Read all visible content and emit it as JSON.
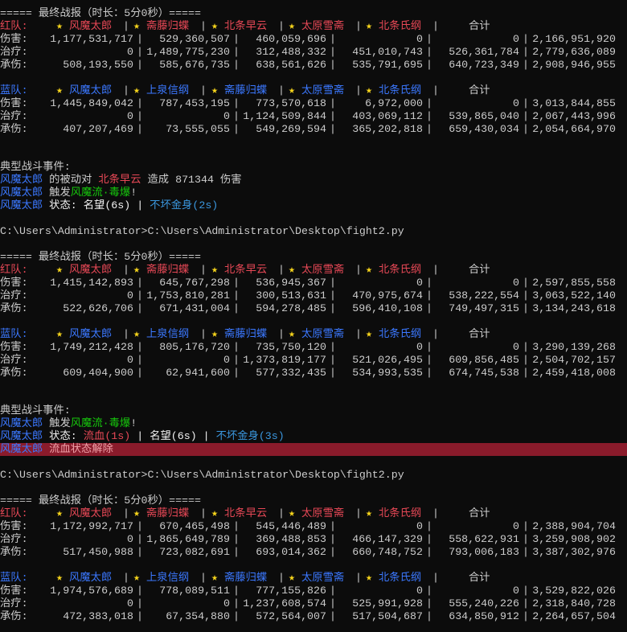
{
  "separator": "|",
  "star": "★",
  "star_color": "#f9d71c",
  "text_color": "#cccccc",
  "blocks": [
    {
      "banner": "===== 最终战报（时长：5分0秒）=====",
      "teams": [
        {
          "label": "红队:",
          "color": "#e74856",
          "members": [
            "风魔太郎",
            "斋藤归蝶",
            "北条早云",
            "太原雪斋",
            "北条氏纲"
          ],
          "total_label": "合计",
          "rows": [
            {
              "label": "伤害:",
              "values": [
                "1,177,531,717",
                "529,360,507",
                "460,059,696",
                "0",
                "0",
                "2,166,951,920"
              ]
            },
            {
              "label": "治疗:",
              "values": [
                "0",
                "1,489,775,230",
                "312,488,332",
                "451,010,743",
                "526,361,784",
                "2,779,636,089"
              ]
            },
            {
              "label": "承伤:",
              "values": [
                "508,193,550",
                "585,676,735",
                "638,561,626",
                "535,791,695",
                "640,723,349",
                "2,908,946,955"
              ]
            }
          ]
        },
        {
          "label": "蓝队:",
          "color": "#3b78ff",
          "members": [
            "风魔太郎",
            "上泉信纲",
            "斋藤归蝶",
            "太原雪斋",
            "北条氏纲"
          ],
          "total_label": "合计",
          "rows": [
            {
              "label": "伤害:",
              "values": [
                "1,445,849,042",
                "787,453,195",
                "773,570,618",
                "6,972,000",
                "0",
                "3,013,844,855"
              ]
            },
            {
              "label": "治疗:",
              "values": [
                "0",
                "0",
                "1,124,509,844",
                "403,069,112",
                "539,865,040",
                "2,067,443,996"
              ]
            },
            {
              "label": "承伤:",
              "values": [
                "407,207,469",
                "73,555,055",
                "549,269,594",
                "365,202,818",
                "659,430,034",
                "2,054,664,970"
              ]
            }
          ]
        }
      ],
      "events_title": "典型战斗事件:",
      "events": [
        {
          "segments": [
            {
              "text": "风魔太郎",
              "color": "#3b78ff"
            },
            {
              "text": " 的被动对 ",
              "color": "#cccccc"
            },
            {
              "text": "北条早云",
              "color": "#e74856"
            },
            {
              "text": " 造成 871344 伤害",
              "color": "#cccccc"
            }
          ]
        },
        {
          "segments": [
            {
              "text": "风魔太郎",
              "color": "#3b78ff"
            },
            {
              "text": " 触发",
              "color": "#cccccc"
            },
            {
              "text": "风魔流·毒爆",
              "color": "#16c60c"
            },
            {
              "text": "!",
              "color": "#cccccc"
            }
          ]
        },
        {
          "segments": [
            {
              "text": "风魔太郎",
              "color": "#3b78ff"
            },
            {
              "text": " 状态: 名望(6s) | ",
              "color": "#f2f2f2"
            },
            {
              "text": "不坏金身(2s)",
              "color": "#3a96dd"
            }
          ]
        }
      ],
      "prompt": "C:\\Users\\Administrator>C:\\Users\\Administrator\\Desktop\\fight2.py"
    },
    {
      "banner": "===== 最终战报（时长：5分0秒）=====",
      "teams": [
        {
          "label": "红队:",
          "color": "#e74856",
          "members": [
            "风魔太郎",
            "斋藤归蝶",
            "北条早云",
            "太原雪斋",
            "北条氏纲"
          ],
          "total_label": "合计",
          "rows": [
            {
              "label": "伤害:",
              "values": [
                "1,415,142,893",
                "645,767,298",
                "536,945,367",
                "0",
                "0",
                "2,597,855,558"
              ]
            },
            {
              "label": "治疗:",
              "values": [
                "0",
                "1,753,810,281",
                "300,513,631",
                "470,975,674",
                "538,222,554",
                "3,063,522,140"
              ]
            },
            {
              "label": "承伤:",
              "values": [
                "522,626,706",
                "671,431,004",
                "594,278,485",
                "596,410,108",
                "749,497,315",
                "3,134,243,618"
              ]
            }
          ]
        },
        {
          "label": "蓝队:",
          "color": "#3b78ff",
          "members": [
            "风魔太郎",
            "上泉信纲",
            "斋藤归蝶",
            "太原雪斋",
            "北条氏纲"
          ],
          "total_label": "合计",
          "rows": [
            {
              "label": "伤害:",
              "values": [
                "1,749,212,428",
                "805,176,720",
                "735,750,120",
                "0",
                "0",
                "3,290,139,268"
              ]
            },
            {
              "label": "治疗:",
              "values": [
                "0",
                "0",
                "1,373,819,177",
                "521,026,495",
                "609,856,485",
                "2,504,702,157"
              ]
            },
            {
              "label": "承伤:",
              "values": [
                "609,404,900",
                "62,941,600",
                "577,332,435",
                "534,993,535",
                "674,745,538",
                "2,459,418,008"
              ]
            }
          ]
        }
      ],
      "events_title": "典型战斗事件:",
      "events": [
        {
          "segments": [
            {
              "text": "风魔太郎",
              "color": "#3b78ff"
            },
            {
              "text": " 触发",
              "color": "#cccccc"
            },
            {
              "text": "风魔流·毒爆",
              "color": "#16c60c"
            },
            {
              "text": "!",
              "color": "#cccccc"
            }
          ]
        },
        {
          "segments": [
            {
              "text": "风魔太郎",
              "color": "#3b78ff"
            },
            {
              "text": " 状态: ",
              "color": "#f2f2f2"
            },
            {
              "text": "流血(1s)",
              "color": "#e74856"
            },
            {
              "text": " | 名望(6s) | ",
              "color": "#f2f2f2"
            },
            {
              "text": "不坏金身(3s)",
              "color": "#3a96dd"
            }
          ]
        },
        {
          "highlight": true,
          "segments": [
            {
              "text": "风魔太郎",
              "color": "#3b78ff"
            },
            {
              "text": " ",
              "color": "#cccccc"
            },
            {
              "text": "流血状态解除",
              "color": "#f0a0a8"
            }
          ]
        }
      ],
      "prompt": "C:\\Users\\Administrator>C:\\Users\\Administrator\\Desktop\\fight2.py"
    },
    {
      "banner": "===== 最终战报（时长：5分0秒）=====",
      "teams": [
        {
          "label": "红队:",
          "color": "#e74856",
          "members": [
            "风魔太郎",
            "斋藤归蝶",
            "北条早云",
            "太原雪斋",
            "北条氏纲"
          ],
          "total_label": "合计",
          "rows": [
            {
              "label": "伤害:",
              "values": [
                "1,172,992,717",
                "670,465,498",
                "545,446,489",
                "0",
                "0",
                "2,388,904,704"
              ]
            },
            {
              "label": "治疗:",
              "values": [
                "0",
                "1,865,649,789",
                "369,488,853",
                "466,147,329",
                "558,622,931",
                "3,259,908,902"
              ]
            },
            {
              "label": "承伤:",
              "values": [
                "517,450,988",
                "723,082,691",
                "693,014,362",
                "660,748,752",
                "793,006,183",
                "3,387,302,976"
              ]
            }
          ]
        },
        {
          "label": "蓝队:",
          "color": "#3b78ff",
          "members": [
            "风魔太郎",
            "上泉信纲",
            "斋藤归蝶",
            "太原雪斋",
            "北条氏纲"
          ],
          "total_label": "合计",
          "rows": [
            {
              "label": "伤害:",
              "values": [
                "1,974,576,689",
                "778,089,511",
                "777,155,826",
                "0",
                "0",
                "3,529,822,026"
              ]
            },
            {
              "label": "治疗:",
              "values": [
                "0",
                "0",
                "1,237,608,574",
                "525,991,928",
                "555,240,226",
                "2,318,840,728"
              ]
            },
            {
              "label": "承伤:",
              "values": [
                "472,383,018",
                "67,354,880",
                "572,564,007",
                "517,504,687",
                "634,850,912",
                "2,264,657,504"
              ]
            }
          ]
        }
      ]
    }
  ]
}
